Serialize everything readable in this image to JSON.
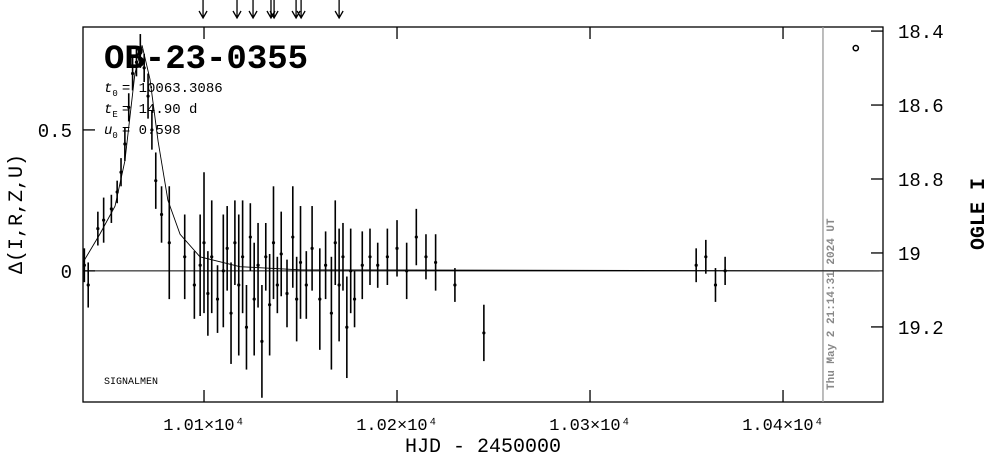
{
  "chart_data": {
    "type": "scatter",
    "title": "OB-23-0355",
    "params": [
      {
        "symbol": "t",
        "sub": "0",
        "text": "= 10063.3086"
      },
      {
        "symbol": "t",
        "sub": "E",
        "text": "= 14.90 d"
      },
      {
        "symbol": "u",
        "sub": "0",
        "text": "= 0.598"
      }
    ],
    "footer_note": "SIGNALMEN",
    "timestamp": "Thu May  2 21:14:31 2024 UT",
    "x_label": "HJD - 2450000",
    "y_label": "Δ(I,R,Z,U)",
    "y2_label": "OGLE I",
    "xlim": [
      10037.3,
      10451.8
    ],
    "xticks": [
      {
        "value": 10100,
        "label": "1.01×10⁴"
      },
      {
        "value": 10200,
        "label": "1.02×10⁴"
      },
      {
        "value": 10300,
        "label": "1.03×10⁴"
      },
      {
        "value": 10400,
        "label": "1.04×10⁴"
      }
    ],
    "ylim": [
      -0.465,
      0.865
    ],
    "yticks": [
      0,
      0.5
    ],
    "y2lim": [
      19.403,
      18.389
    ],
    "y2ticks": [
      18.4,
      18.6,
      18.8,
      19,
      19.2
    ],
    "arrows": [
      10099.5,
      10117.1,
      10125.4,
      10134.7,
      10136.3,
      10147.7,
      10150.3,
      10170.0
    ],
    "now_line": 10420.7,
    "marker_point": {
      "x": 10437.7,
      "y": 0.79
    },
    "model": {
      "x": [
        10037.3,
        10046,
        10053.9,
        10059,
        10064.2,
        10067.9,
        10072,
        10076.2,
        10081.3,
        10087.6,
        10097.9,
        10118.6,
        10149.7,
        10450
      ],
      "values": [
        0.03,
        0.13,
        0.23,
        0.39,
        0.7,
        0.8,
        0.68,
        0.46,
        0.25,
        0.13,
        0.05,
        0.015,
        0.004,
        0
      ]
    },
    "series": [
      {
        "color": "#000000",
        "x": [
          10038,
          10040,
          10045,
          10048,
          10052,
          10055,
          10057,
          10059,
          10061,
          10063,
          10065,
          10067,
          10069,
          10071,
          10073,
          10075,
          10078,
          10082,
          10090,
          10095,
          10098,
          10100,
          10102,
          10104,
          10107,
          10110,
          10112,
          10114,
          10116,
          10118,
          10120,
          10122,
          10124,
          10126,
          10128,
          10130,
          10132,
          10134,
          10136,
          10138,
          10140,
          10143,
          10146,
          10148,
          10150,
          10153,
          10156,
          10160,
          10163,
          10166,
          10168,
          10170,
          10172,
          10174,
          10176,
          10178,
          10182,
          10186,
          10190,
          10195,
          10200,
          10205,
          10210,
          10215,
          10220,
          10230,
          10245,
          10355,
          10360,
          10365,
          10370
        ],
        "values": [
          0.02,
          -0.05,
          0.15,
          0.18,
          0.22,
          0.28,
          0.35,
          0.45,
          0.58,
          0.7,
          0.74,
          0.78,
          0.72,
          0.62,
          0.5,
          0.32,
          0.2,
          0.1,
          0.05,
          -0.05,
          0.02,
          0.1,
          -0.08,
          0.05,
          -0.1,
          0.0,
          0.08,
          -0.15,
          0.1,
          -0.05,
          0.05,
          -0.2,
          0.12,
          -0.1,
          0.02,
          -0.25,
          0.05,
          -0.12,
          0.1,
          -0.05,
          0.06,
          -0.08,
          0.12,
          -0.1,
          0.03,
          -0.05,
          0.08,
          -0.1,
          0.02,
          -0.15,
          0.1,
          -0.05,
          0.05,
          -0.2,
          0.0,
          -0.1,
          0.02,
          0.05,
          0.02,
          0.05,
          0.08,
          0.0,
          0.12,
          0.05,
          0.03,
          -0.05,
          -0.22,
          0.02,
          0.05,
          -0.05,
          0.0
        ],
        "errors": [
          0.06,
          0.08,
          0.06,
          0.08,
          0.05,
          0.04,
          0.05,
          0.06,
          0.05,
          0.06,
          0.05,
          0.06,
          0.05,
          0.08,
          0.07,
          0.1,
          0.1,
          0.2,
          0.15,
          0.12,
          0.18,
          0.25,
          0.15,
          0.2,
          0.12,
          0.2,
          0.15,
          0.18,
          0.15,
          0.25,
          0.2,
          0.15,
          0.12,
          0.2,
          0.15,
          0.2,
          0.12,
          0.18,
          0.2,
          0.1,
          0.15,
          0.12,
          0.18,
          0.15,
          0.2,
          0.12,
          0.15,
          0.18,
          0.12,
          0.2,
          0.15,
          0.2,
          0.12,
          0.18,
          0.15,
          0.1,
          0.12,
          0.1,
          0.08,
          0.1,
          0.1,
          0.1,
          0.1,
          0.08,
          0.1,
          0.06,
          0.1,
          0.06,
          0.06,
          0.06,
          0.05
        ]
      }
    ]
  }
}
